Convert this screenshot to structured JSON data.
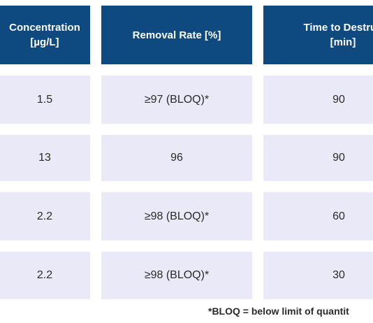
{
  "headers": {
    "col1_line1": "Concentration",
    "col1_line2": "[µg/L]",
    "col2": "Removal Rate [%]",
    "col3_line1": "Time to Destruc",
    "col3_line2": "[min]"
  },
  "rows": [
    {
      "concentration": "1.5",
      "removal_rate": "≥97 (BLOQ)*",
      "time": "90"
    },
    {
      "concentration": "13",
      "removal_rate": "96",
      "time": "90"
    },
    {
      "concentration": "2.2",
      "removal_rate": "≥98 (BLOQ)*",
      "time": "60"
    },
    {
      "concentration": "2.2",
      "removal_rate": "≥98 (BLOQ)*",
      "time": "30"
    }
  ],
  "footnote": "*BLOQ = below limit of quantit",
  "colors": {
    "header_bg": "#0e4a80",
    "row_bg": "#e9e9f8",
    "header_text": "#ffffff",
    "body_text": "#2a2a2a"
  }
}
